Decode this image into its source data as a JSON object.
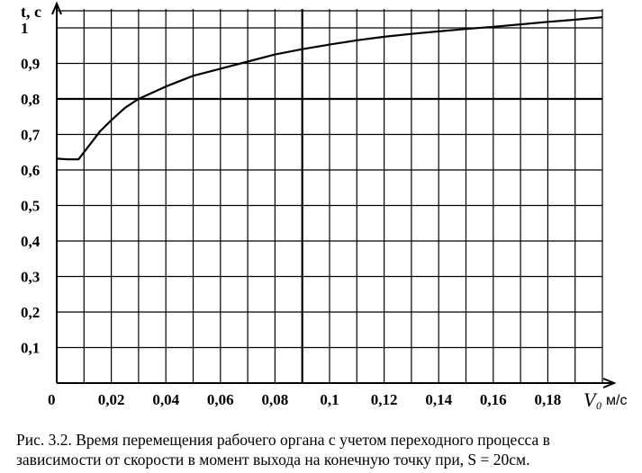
{
  "chart_data": {
    "type": "line",
    "ylabel": "t, с",
    "xlabel_symbol": "V",
    "xlabel_subscript": "0",
    "xlabel_unit": "м/с",
    "origin_label": "0",
    "xlim": [
      0,
      0.2
    ],
    "ylim": [
      0,
      1.0
    ],
    "x_ticks": [
      0.02,
      0.04,
      0.06,
      0.08,
      0.1,
      0.12,
      0.14,
      0.16,
      0.18
    ],
    "x_tick_labels": [
      "0,02",
      "0,04",
      "0,06",
      "0,08",
      "0,1",
      "0,12",
      "0,14",
      "0,16",
      "0,18"
    ],
    "y_ticks": [
      0.1,
      0.2,
      0.3,
      0.4,
      0.5,
      0.6,
      0.7,
      0.8,
      0.9,
      1.0
    ],
    "y_tick_labels": [
      "0,1",
      "0,2",
      "0,3",
      "0,4",
      "0,5",
      "0,6",
      "0,7",
      "0,8",
      "0,9",
      "1"
    ],
    "grid": true,
    "x_grid_step": 0.01,
    "y_grid_step": 0.1,
    "emphasis_lines": {
      "x": 0.09,
      "y": 0.8
    },
    "series": [
      {
        "x": [
          0,
          0.004,
          0.008,
          0.012,
          0.016,
          0.02,
          0.025,
          0.03,
          0.04,
          0.05,
          0.06,
          0.07,
          0.08,
          0.09,
          0.1,
          0.11,
          0.12,
          0.13,
          0.14,
          0.15,
          0.16,
          0.17,
          0.18,
          0.19,
          0.2
        ],
        "y": [
          0.632,
          0.63,
          0.63,
          0.67,
          0.71,
          0.74,
          0.775,
          0.8,
          0.835,
          0.865,
          0.885,
          0.905,
          0.925,
          0.94,
          0.953,
          0.965,
          0.975,
          0.983,
          0.99,
          0.997,
          1.003,
          1.01,
          1.017,
          1.023,
          1.03
        ]
      }
    ]
  },
  "caption": {
    "line1": "Рис. 3.2. Время перемещения рабочего органа с учетом переходного процесса в",
    "line2": "зависимости от скорости в момент выхода на конечную точку при, S = 20см."
  }
}
